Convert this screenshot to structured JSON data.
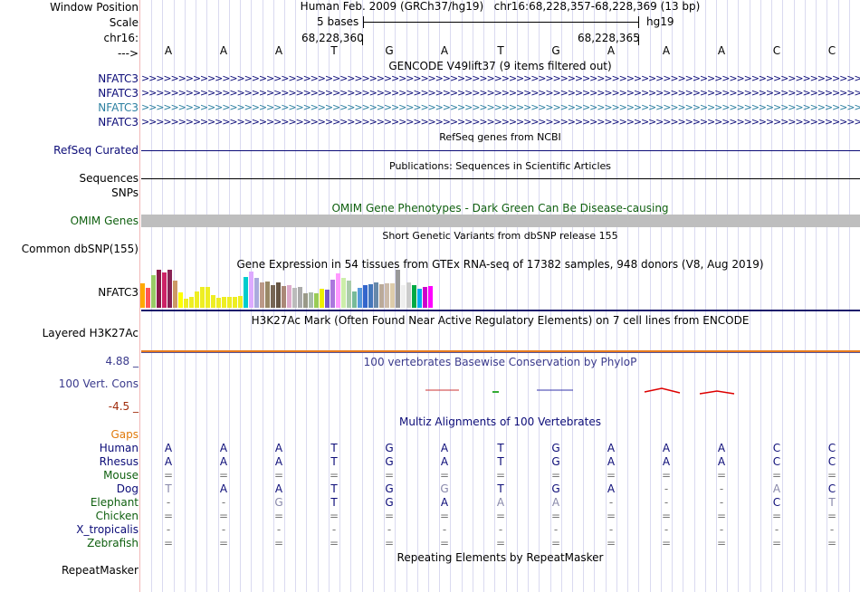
{
  "header": {
    "window_position_label": "Window Position",
    "scale_label": "Scale",
    "chrom_label": "chr16:",
    "strand_label": "--->",
    "position_text": "Human Feb. 2009 (GRCh37/hg19)   chr16:68,228,357-68,228,369 (13 bp)",
    "scale_text": "5 bases",
    "assembly": "hg19",
    "coord_left": "68,228,360",
    "coord_right": "68,228,365"
  },
  "bases": [
    "A",
    "A",
    "A",
    "T",
    "G",
    "A",
    "T",
    "G",
    "A",
    "A",
    "A",
    "C",
    "C"
  ],
  "tracks": {
    "gencode": {
      "title": "GENCODE V49lift37 (9 items filtered out)",
      "items": [
        {
          "label": "NFATC3",
          "color": "#0c0c78"
        },
        {
          "label": "NFATC3",
          "color": "#0c0c78"
        },
        {
          "label": "NFATC3",
          "color": "#2b7fa0"
        },
        {
          "label": "NFATC3",
          "color": "#0c0c78"
        }
      ]
    },
    "refseq": {
      "title": "RefSeq genes from NCBI",
      "label": "RefSeq Curated",
      "color": "#0c0c78"
    },
    "publications": {
      "title": "Publications: Sequences in Scientific Articles",
      "label_line1": "Sequences",
      "label_line2": "SNPs"
    },
    "omim": {
      "title": "OMIM Gene Phenotypes - Dark Green Can Be Disease-causing",
      "label": "OMIM Genes",
      "color": "#106010"
    },
    "dbsnp": {
      "title": "Short Genetic Variants from dbSNP release 155",
      "label": "Common dbSNP(155)"
    },
    "gtex": {
      "title": "Gene Expression in 54 tissues from GTEx RNA-seq of 17382 samples, 948 donors (V8, Aug 2019)",
      "label": "NFATC3",
      "values": [
        27,
        22,
        36,
        42,
        39,
        42,
        30,
        17,
        10,
        12,
        18,
        23,
        23,
        14,
        11,
        12,
        12,
        12,
        13,
        34,
        40,
        33,
        28,
        29,
        25,
        28,
        24,
        25,
        22,
        23,
        16,
        17,
        16,
        21,
        20,
        31,
        38,
        33,
        30,
        18,
        22,
        25,
        26,
        28,
        26,
        27,
        27,
        42,
        25,
        28,
        25,
        21,
        23,
        24
      ],
      "colors": [
        "#ffaa00",
        "#ff5555",
        "#99cc66",
        "#8b1a4a",
        "#cc2266",
        "#882255",
        "#cc9966",
        "#ffff00",
        "#eeee22",
        "#eeee22",
        "#eeee22",
        "#eeee22",
        "#eeee22",
        "#eeee22",
        "#eeee22",
        "#eeee22",
        "#eeee22",
        "#eeee22",
        "#eeee22",
        "#00cccc",
        "#ddaaff",
        "#aaaadd",
        "#bb9988",
        "#998866",
        "#776655",
        "#665544",
        "#aa8877",
        "#ddaacc",
        "#bbbbbb",
        "#aaaaaa",
        "#999988",
        "#aabbaa",
        "#99cc55",
        "#eeee00",
        "#7755cc",
        "#aa77dd",
        "#ff99ff",
        "#cceeaa",
        "#aaccaa",
        "#77bb99",
        "#5599dd",
        "#3366cc",
        "#4477bb",
        "#6688aa",
        "#bbaa99",
        "#ccbbaa",
        "#ddccaa",
        "#999999",
        "#eeeeee",
        "#cccccc",
        "#00aa44",
        "#00aaee",
        "#cc00cc",
        "#ff00ff"
      ]
    },
    "h3k27ac": {
      "title": "H3K27Ac Mark (Often Found Near Active Regulatory Elements) on 7 cell lines from ENCODE",
      "label": "Layered H3K27Ac"
    },
    "cons": {
      "title": "100 vertebrates Basewise Conservation by PhyloP",
      "label": "100 Vert. Cons",
      "max": "4.88 _",
      "min": "-4.5 _",
      "max_color": "#3a3a8c",
      "min_color": "#a02c0c"
    },
    "multiz": {
      "title": "Multiz Alignments of 100 Vertebrates",
      "gaps_label": "Gaps",
      "gaps_color": "#e07a0c",
      "species": [
        {
          "name": "Human",
          "color": "#0c0c78",
          "bases": [
            "A",
            "A",
            "A",
            "T",
            "G",
            "A",
            "T",
            "G",
            "A",
            "A",
            "A",
            "C",
            "C"
          ],
          "faint": []
        },
        {
          "name": "Rhesus",
          "color": "#0c0c78",
          "bases": [
            "A",
            "A",
            "A",
            "T",
            "G",
            "A",
            "T",
            "G",
            "A",
            "A",
            "A",
            "C",
            "C"
          ],
          "faint": []
        },
        {
          "name": "Mouse",
          "color": "#106010",
          "bases": [
            "=",
            "=",
            "=",
            "=",
            "=",
            "=",
            "=",
            "=",
            "=",
            "=",
            "=",
            "=",
            "="
          ],
          "faint": []
        },
        {
          "name": "Dog",
          "color": "#0c0c78",
          "bases": [
            "T",
            "A",
            "A",
            "T",
            "G",
            "G",
            "T",
            "G",
            "A",
            "-",
            "-",
            "A",
            "C"
          ],
          "faint": [
            0,
            5,
            11
          ]
        },
        {
          "name": "Elephant",
          "color": "#106010",
          "bases": [
            "-",
            "-",
            "G",
            "T",
            "G",
            "A",
            "A",
            "A",
            "-",
            "-",
            "-",
            "C",
            "T"
          ],
          "faint": [
            2,
            6,
            7,
            12
          ]
        },
        {
          "name": "Chicken",
          "color": "#106010",
          "bases": [
            "=",
            "=",
            "=",
            "=",
            "=",
            "=",
            "=",
            "=",
            "=",
            "=",
            "=",
            "=",
            "="
          ],
          "faint": []
        },
        {
          "name": "X_tropicalis",
          "color": "#0c0c78",
          "bases": [
            "-",
            "-",
            "-",
            "-",
            "-",
            "-",
            "-",
            "-",
            "-",
            "-",
            "-",
            "-",
            "-"
          ],
          "faint": []
        },
        {
          "name": "Zebrafish",
          "color": "#106010",
          "bases": [
            "=",
            "=",
            "=",
            "=",
            "=",
            "=",
            "=",
            "=",
            "=",
            "=",
            "=",
            "=",
            "="
          ],
          "faint": []
        }
      ]
    },
    "rmsk": {
      "title": "Repeating Elements by RepeatMasker",
      "label": "RepeatMasker"
    }
  }
}
